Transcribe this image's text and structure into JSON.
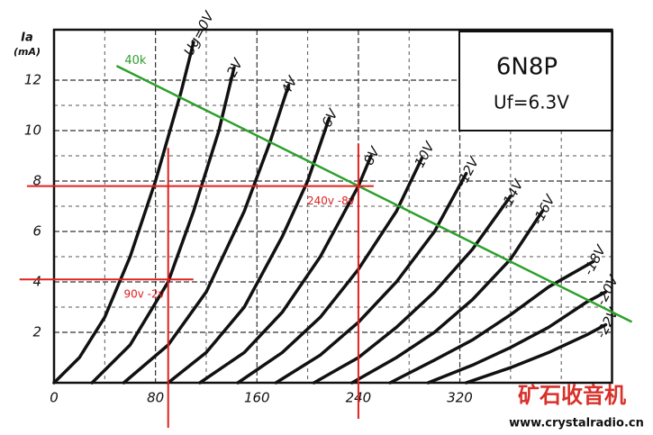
{
  "chart_data": {
    "type": "line",
    "title": "6N8P",
    "subtitle": "Uf=6.3V",
    "ylabel": "Ia",
    "yunit": "(mA)",
    "xlim": [
      0,
      440
    ],
    "ylim": [
      0,
      14
    ],
    "xticks": [
      0,
      80,
      160,
      240,
      320
    ],
    "yticks": [
      2,
      4,
      6,
      8,
      10,
      12
    ],
    "grid": true,
    "series": [
      {
        "name": "Ug=0V",
        "color": "#111111",
        "x": [
          0,
          20,
          40,
          60,
          80,
          100,
          110
        ],
        "values": [
          0,
          1,
          2.6,
          5,
          8,
          11.5,
          13.5
        ]
      },
      {
        "name": "-2V",
        "color": "#111111",
        "x": [
          30,
          60,
          90,
          110,
          130,
          142
        ],
        "values": [
          0,
          1.5,
          4,
          6.8,
          10,
          12.5
        ]
      },
      {
        "name": "-4V",
        "color": "#111111",
        "x": [
          55,
          90,
          120,
          150,
          170,
          185
        ],
        "values": [
          0,
          1.5,
          3.6,
          6.8,
          9.5,
          11.8
        ]
      },
      {
        "name": "-6V",
        "color": "#111111",
        "x": [
          90,
          120,
          150,
          180,
          200,
          217
        ],
        "values": [
          0,
          1.2,
          3,
          5.8,
          8,
          10.5
        ]
      },
      {
        "name": "-8V",
        "color": "#111111",
        "x": [
          115,
          150,
          180,
          210,
          240,
          250
        ],
        "values": [
          0,
          1.2,
          2.8,
          5,
          7.8,
          9
        ]
      },
      {
        "name": "-10V",
        "color": "#111111",
        "x": [
          145,
          180,
          210,
          240,
          270,
          290
        ],
        "values": [
          0,
          1.2,
          2.6,
          4.5,
          6.8,
          8.9
        ]
      },
      {
        "name": "-12V",
        "color": "#111111",
        "x": [
          175,
          210,
          240,
          270,
          300,
          325
        ],
        "values": [
          0,
          1.1,
          2.4,
          4,
          6,
          8.3
        ]
      },
      {
        "name": "-14V",
        "color": "#111111",
        "x": [
          205,
          240,
          270,
          300,
          330,
          360
        ],
        "values": [
          0,
          1,
          2.2,
          3.6,
          5.3,
          7.4
        ]
      },
      {
        "name": "-16V",
        "color": "#111111",
        "x": [
          235,
          270,
          300,
          330,
          360,
          385
        ],
        "values": [
          0,
          1,
          2,
          3.3,
          4.9,
          6.8
        ]
      },
      {
        "name": "-18V",
        "color": "#111111",
        "x": [
          265,
          300,
          330,
          360,
          390,
          425
        ],
        "values": [
          0,
          0.9,
          1.7,
          2.7,
          3.8,
          4.8
        ]
      },
      {
        "name": "-20V",
        "color": "#111111",
        "x": [
          295,
          330,
          360,
          390,
          420,
          435
        ],
        "values": [
          0,
          0.7,
          1.4,
          2.2,
          3.2,
          3.6
        ]
      },
      {
        "name": "-22V",
        "color": "#111111",
        "x": [
          325,
          360,
          390,
          420,
          435
        ],
        "values": [
          0,
          0.6,
          1.2,
          1.9,
          2.3
        ]
      },
      {
        "name": "40k",
        "color": "#2ca02c",
        "x": [
          50,
          455
        ],
        "values": [
          12.55,
          2.43
        ]
      }
    ],
    "annotations": [
      {
        "text": "90v -2v",
        "x": 90,
        "y": 4.1,
        "color": "#e02020"
      },
      {
        "text": "240v -8v",
        "x": 240,
        "y": 7.8,
        "color": "#e02020"
      }
    ],
    "watermark": [
      "矿石收音机",
      "www.crystalradio.cn"
    ]
  }
}
